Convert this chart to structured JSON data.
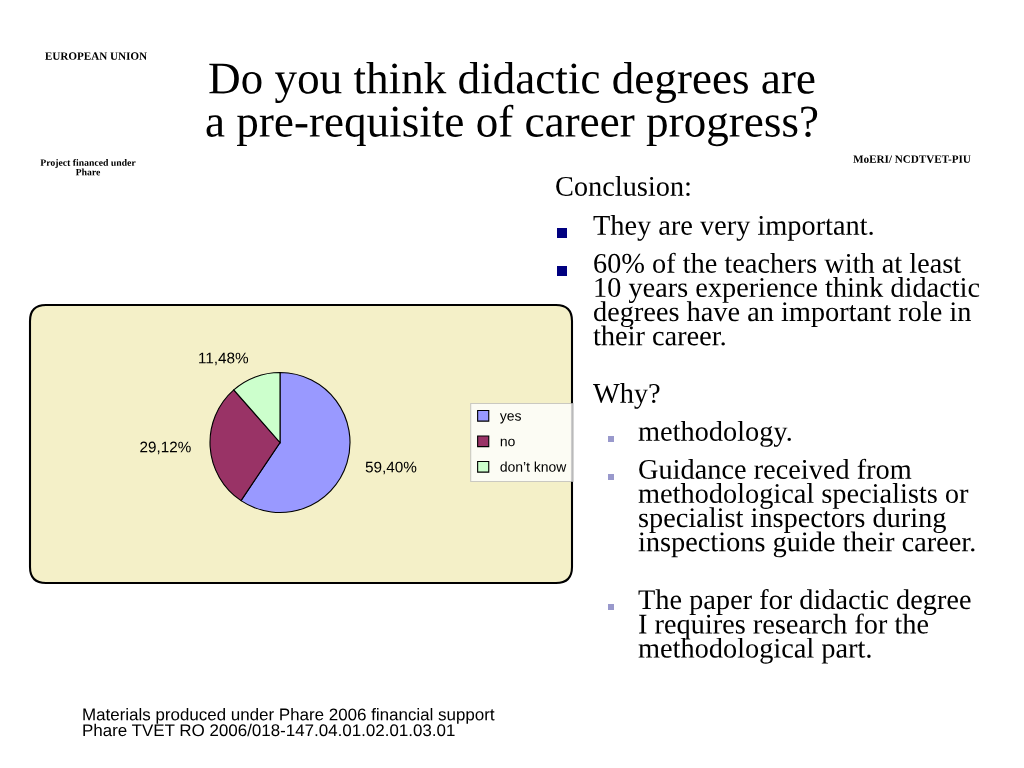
{
  "chart_data": {
    "type": "pie",
    "title": "Do you think didactic degrees are\na pre-requisite of career progress?",
    "categories": [
      "yes",
      "no",
      "don’t know"
    ],
    "values": [
      59.4,
      29.12,
      11.48
    ],
    "colors": [
      "#9999ff",
      "#993366",
      "#ccffcc"
    ],
    "value_labels": [
      "59,40%",
      "29,12%",
      "11,48%"
    ],
    "legend": "right",
    "annotations": [
      "EUROPEAN UNION",
      "Project financed under\nPhare",
      "MoERI/ NCDTVET-PIU",
      "Conclusion:",
      "They are very important.",
      "60% of the teachers with at least\n10 years experience think didactic\ndegrees have an important role in\ntheir career.",
      "Why?",
      "methodology.",
      "Guidance received from\nmethodological specialists or\nspecialist inspectors during\ninspections guide their career.",
      "The paper for didactic degree\nI requires research for the\nmethodological part.",
      "Materials produced under Phare 2006 financial support\nPhare TVET RO 2006/018-147.04.01.02.01.03.01"
    ]
  }
}
